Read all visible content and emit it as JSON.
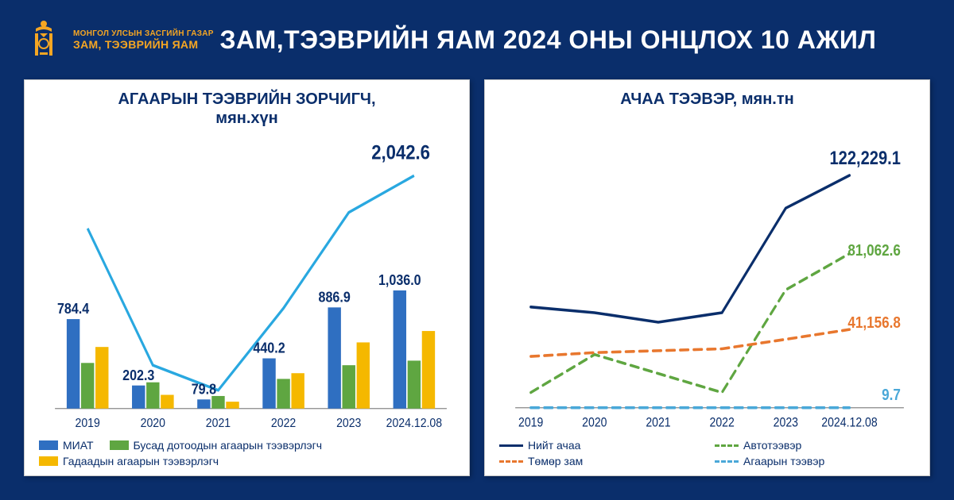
{
  "header": {
    "logo_sub": "МОНГОЛ УЛСЫН ЗАСГИЙН ГАЗАР",
    "logo_main": "ЗАМ, ТЭЭВРИЙН ЯАМ",
    "title": "ЗАМ,ТЭЭВРИЙН ЯАМ 2024 ОНЫ ОНЦЛОХ 10 АЖИЛ"
  },
  "colors": {
    "page_bg": "#0a2e6b",
    "panel_bg": "#ffffff",
    "accent": "#f5a623",
    "text_dark": "#0a2e6b",
    "grid": "#cccccc"
  },
  "chart1": {
    "type": "bar+line",
    "title_l1": "АГААРЫН ТЭЭВРИЙН ЗОРЧИГЧ,",
    "title_l2": "мян.хүн",
    "categories": [
      "2019",
      "2020",
      "2021",
      "2022",
      "2023",
      "2024.12.08"
    ],
    "line_total": {
      "values": [
        1580,
        380,
        160,
        880,
        1720,
        2042.6
      ],
      "color": "#29a8e0",
      "width": 3,
      "end_label": "2,042.6"
    },
    "bars": {
      "series": [
        {
          "name": "miat",
          "label": "МИАТ",
          "color": "#2f6fc1",
          "values": [
            784.4,
            202.3,
            79.8,
            440.2,
            886.9,
            1036.0
          ]
        },
        {
          "name": "busad",
          "label": "Бусад дотоодын агаарын тээвэрлэгч",
          "color": "#5fa641",
          "values": [
            400,
            230,
            110,
            260,
            380,
            420
          ]
        },
        {
          "name": "gadaad",
          "label": "Гадаадын агаарын тээвэрлэгч",
          "color": "#f5b800",
          "values": [
            540,
            120,
            60,
            310,
            580,
            680
          ]
        }
      ],
      "top_labels": [
        "784.4",
        "202.3",
        "79.8",
        "440.2",
        "886.9",
        "1,036.0"
      ]
    },
    "ylim": [
      0,
      2100
    ],
    "bar_width": 0.2,
    "bar_gap": 0.02
  },
  "chart2": {
    "type": "line",
    "title": "АЧАА ТЭЭВЭР, мян.тн",
    "categories": [
      "2019",
      "2020",
      "2021",
      "2022",
      "2023",
      "2024.12.08"
    ],
    "series": [
      {
        "name": "niit",
        "label": "Нийт ачаа",
        "color": "#0a2e6b",
        "style": "solid",
        "values": [
          53000,
          50000,
          45000,
          50000,
          105000,
          122229.1
        ],
        "end_label": "122,229.1",
        "end_color": "#0a2e6b"
      },
      {
        "name": "avto",
        "label": "Автотээвэр",
        "color": "#5fa641",
        "style": "dash",
        "values": [
          8000,
          28000,
          18000,
          8000,
          62000,
          81062.6
        ],
        "end_label": "81,062.6",
        "end_color": "#5fa641"
      },
      {
        "name": "tumur",
        "label": "Төмөр зам",
        "color": "#e8772e",
        "style": "dash",
        "values": [
          27000,
          29000,
          30000,
          31000,
          36000,
          41156.8
        ],
        "end_label": "41,156.8",
        "end_color": "#e8772e"
      },
      {
        "name": "agaar",
        "label": "Агаарын тээвэр",
        "color": "#4aa8d8",
        "style": "dash",
        "values": [
          9,
          9,
          9,
          9,
          9,
          9.7
        ],
        "end_label": "9.7",
        "end_color": "#4aa8d8"
      }
    ],
    "ylim": [
      0,
      130000
    ],
    "line_width": 3
  }
}
